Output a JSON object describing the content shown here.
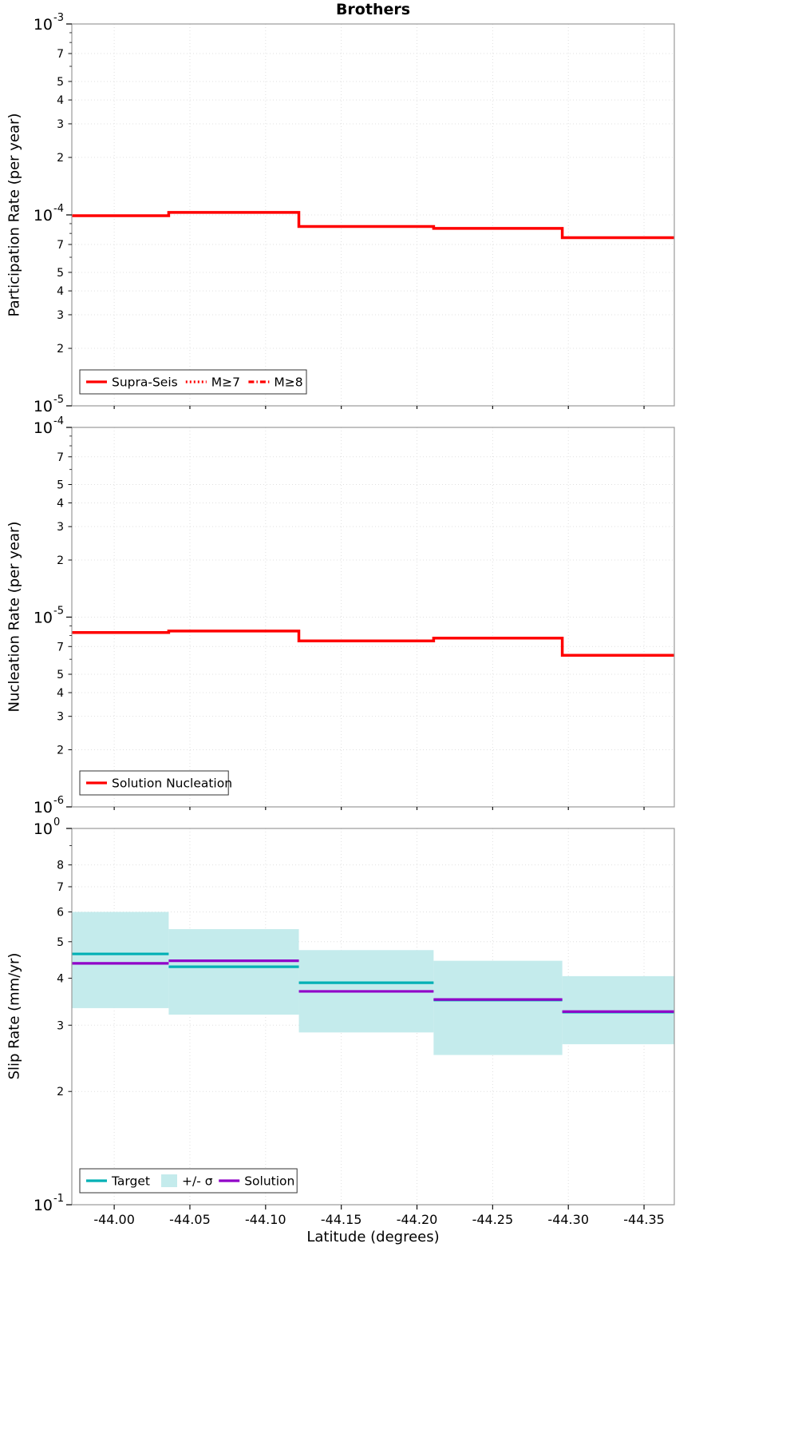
{
  "figure": {
    "title": "Brothers"
  },
  "x_axis": {
    "label": "Latitude (degrees)",
    "ticks": [
      {
        "v": -44.0,
        "label": "-44.00"
      },
      {
        "v": -44.05,
        "label": "-44.05"
      },
      {
        "v": -44.1,
        "label": "-44.10"
      },
      {
        "v": -44.15,
        "label": "-44.15"
      },
      {
        "v": -44.2,
        "label": "-44.20"
      },
      {
        "v": -44.25,
        "label": "-44.25"
      },
      {
        "v": -44.3,
        "label": "-44.30"
      },
      {
        "v": -44.35,
        "label": "-44.35"
      }
    ]
  },
  "chart_data": [
    {
      "type": "step-line",
      "title": "Brothers",
      "ylabel": "Participation Rate (per year)",
      "yscale": "log",
      "ylim": [
        1e-05,
        0.001
      ],
      "xlim": [
        -43.972,
        -44.37
      ],
      "grid": true,
      "legend_position": "lower-left",
      "x_edges": [
        -43.972,
        -44.036,
        -44.122,
        -44.211,
        -44.296,
        -44.37
      ],
      "connect_steps": true,
      "yticks": [
        {
          "v": 0.001,
          "exp": "-3"
        },
        {
          "v": 0.0007,
          "label": "7"
        },
        {
          "v": 0.0005,
          "label": "5"
        },
        {
          "v": 0.0004,
          "label": "4"
        },
        {
          "v": 0.0003,
          "label": "3"
        },
        {
          "v": 0.0002,
          "label": "2"
        },
        {
          "v": 0.0001,
          "exp": "-4"
        },
        {
          "v": 7e-05,
          "label": "7"
        },
        {
          "v": 5e-05,
          "label": "5"
        },
        {
          "v": 4e-05,
          "label": "4"
        },
        {
          "v": 3e-05,
          "label": "3"
        },
        {
          "v": 2e-05,
          "label": "2"
        },
        {
          "v": 1e-05,
          "exp": "-5"
        }
      ],
      "series": [
        {
          "key": "supra-seis",
          "name": "Supra-Seis",
          "color": "#ff0000",
          "style": "solid",
          "width": 3.5,
          "values": [
            9.9e-05,
            0.000103,
            8.7e-05,
            8.5e-05,
            7.6e-05
          ]
        }
      ],
      "legend": [
        {
          "key": "supra-seis",
          "label": "Supra-Seis",
          "color": "#ff0000",
          "style": "solid"
        },
        {
          "key": "m-ge-7",
          "label": "M≥7",
          "color": "#ff0000",
          "style": "dotted"
        },
        {
          "key": "m-ge-8",
          "label": "M≥8",
          "color": "#ff0000",
          "style": "dashdot"
        }
      ]
    },
    {
      "type": "step-line",
      "ylabel": "Nucleation Rate (per year)",
      "yscale": "log",
      "ylim": [
        1e-06,
        0.0001
      ],
      "xlim": [
        -43.972,
        -44.37
      ],
      "grid": true,
      "legend_position": "lower-left",
      "x_edges": [
        -43.972,
        -44.036,
        -44.122,
        -44.211,
        -44.296,
        -44.37
      ],
      "connect_steps": true,
      "yticks": [
        {
          "v": 0.0001,
          "exp": "-4"
        },
        {
          "v": 7e-05,
          "label": "7"
        },
        {
          "v": 5e-05,
          "label": "5"
        },
        {
          "v": 4e-05,
          "label": "4"
        },
        {
          "v": 3e-05,
          "label": "3"
        },
        {
          "v": 2e-05,
          "label": "2"
        },
        {
          "v": 1e-05,
          "exp": "-5"
        },
        {
          "v": 7e-06,
          "label": "7"
        },
        {
          "v": 5e-06,
          "label": "5"
        },
        {
          "v": 4e-06,
          "label": "4"
        },
        {
          "v": 3e-06,
          "label": "3"
        },
        {
          "v": 2e-06,
          "label": "2"
        },
        {
          "v": 1e-06,
          "exp": "-6"
        }
      ],
      "series": [
        {
          "key": "solution-nucleation",
          "name": "Solution Nucleation",
          "color": "#ff0000",
          "style": "solid",
          "width": 3.5,
          "values": [
            8.3e-06,
            8.45e-06,
            7.5e-06,
            7.75e-06,
            6.3e-06
          ]
        }
      ],
      "legend": [
        {
          "key": "solution-nucleation",
          "label": "Solution Nucleation",
          "color": "#ff0000",
          "style": "solid"
        }
      ]
    },
    {
      "type": "step-line",
      "ylabel": "Slip Rate (mm/yr)",
      "xlabel": "Latitude (degrees)",
      "yscale": "log",
      "ylim": [
        0.1,
        1.0
      ],
      "xlim": [
        -43.972,
        -44.37
      ],
      "grid": true,
      "legend_position": "lower-left",
      "x_edges": [
        -43.972,
        -44.036,
        -44.122,
        -44.211,
        -44.296,
        -44.37
      ],
      "connect_steps": false,
      "yticks": [
        {
          "v": 1.0,
          "exp": "0"
        },
        {
          "v": 0.8,
          "label": "8"
        },
        {
          "v": 0.7,
          "label": "7"
        },
        {
          "v": 0.6,
          "label": "6"
        },
        {
          "v": 0.5,
          "label": "5"
        },
        {
          "v": 0.4,
          "label": "4"
        },
        {
          "v": 0.3,
          "label": "3"
        },
        {
          "v": 0.2,
          "label": "2"
        },
        {
          "v": 0.1,
          "exp": "-1"
        }
      ],
      "series": [
        {
          "key": "sigma-band",
          "name": "+/- σ",
          "type": "band",
          "color": "#c4ebec",
          "hi": [
            0.6,
            0.54,
            0.475,
            0.445,
            0.405
          ],
          "lo": [
            0.333,
            0.32,
            0.287,
            0.25,
            0.267
          ]
        },
        {
          "key": "target",
          "name": "Target",
          "color": "#00b0b5",
          "style": "solid",
          "width": 3.2,
          "values": [
            0.464,
            0.429,
            0.389,
            0.35,
            0.325
          ]
        },
        {
          "key": "solution",
          "name": "Solution",
          "color": "#9000c8",
          "style": "solid",
          "width": 3.2,
          "values": [
            0.438,
            0.445,
            0.369,
            0.351,
            0.326
          ]
        }
      ],
      "legend": [
        {
          "key": "target",
          "label": "Target",
          "color": "#00b0b5",
          "style": "solid"
        },
        {
          "key": "sigma-band",
          "label": "+/- σ",
          "color": "#c4ebec",
          "style": "patch"
        },
        {
          "key": "solution",
          "label": "Solution",
          "color": "#9000c8",
          "style": "solid"
        }
      ]
    }
  ]
}
